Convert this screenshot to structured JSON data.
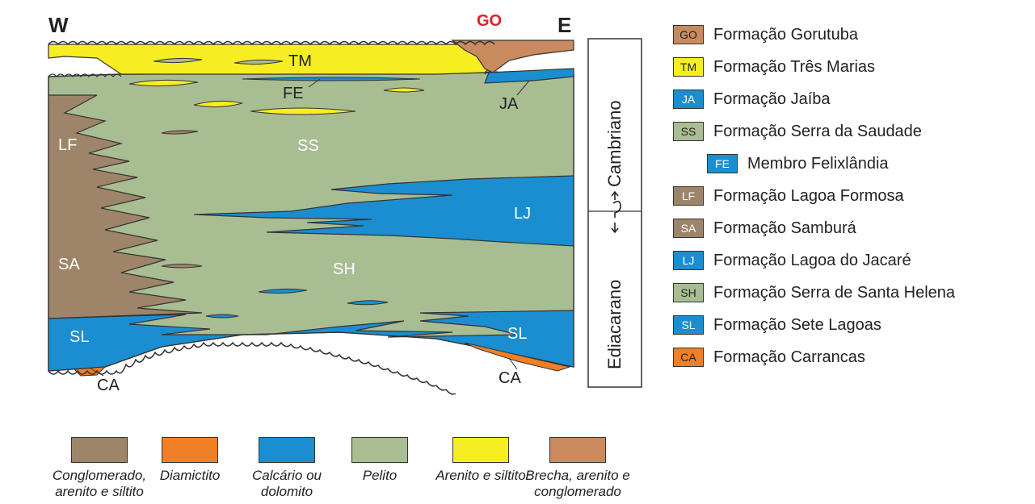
{
  "colors": {
    "conglomerate": "#9e8468",
    "diamictite": "#f07f26",
    "carbonate": "#1a8ed0",
    "pelite": "#a9bd93",
    "sandstone": "#f7ee21",
    "breccia": "#c98a5e",
    "line": "#333333"
  },
  "diagram": {
    "west": "W",
    "east": "E",
    "go": "GO",
    "tm": "TM",
    "fe": "FE",
    "ja": "JA",
    "lf": "LF",
    "ss": "SS",
    "lj": "LJ",
    "sa": "SA",
    "sh": "SH",
    "sl_left": "SL",
    "sl_right": "SL",
    "ca_left": "CA",
    "ca_right": "CA",
    "period_upper": "Cambriano",
    "period_lower": "Ediacarano"
  },
  "legend": [
    {
      "code": "GO",
      "label": "Formação Gorutuba",
      "color": "#c98a5e",
      "dark": false
    },
    {
      "code": "TM",
      "label": "Formação Três Marias",
      "color": "#f7ee21",
      "dark": false
    },
    {
      "code": "JA",
      "label": "Formação Jaíba",
      "color": "#1a8ed0",
      "dark": true
    },
    {
      "code": "SS",
      "label": "Formação Serra da Saudade",
      "color": "#a9bd93",
      "dark": false
    },
    {
      "code": "FE",
      "label": "Membro Felixlândia",
      "color": "#1a8ed0",
      "dark": true
    },
    {
      "code": "LF",
      "label": "Formação Lagoa Formosa",
      "color": "#9e8468",
      "dark": true
    },
    {
      "code": "SA",
      "label": "Formação Samburá",
      "color": "#9e8468",
      "dark": true
    },
    {
      "code": "LJ",
      "label": "Formação Lagoa do Jacaré",
      "color": "#1a8ed0",
      "dark": true
    },
    {
      "code": "SH",
      "label": "Formação Serra de Santa Helena",
      "color": "#a9bd93",
      "dark": false
    },
    {
      "code": "SL",
      "label": "Formação Sete Lagoas",
      "color": "#1a8ed0",
      "dark": true
    },
    {
      "code": "CA",
      "label": "Formação Carrancas",
      "color": "#f07f26",
      "dark": false
    }
  ],
  "lithology": [
    {
      "label": "Conglomerado, arenito e siltito",
      "color": "#9e8468"
    },
    {
      "label": "Diamictito",
      "color": "#f07f26"
    },
    {
      "label": "Calcário ou dolomito",
      "color": "#1a8ed0"
    },
    {
      "label": "Pelito",
      "color": "#a9bd93"
    },
    {
      "label": "Arenito e siltito",
      "color": "#f7ee21"
    },
    {
      "label": "Brecha, arenito e conglomerado",
      "color": "#c98a5e"
    }
  ]
}
